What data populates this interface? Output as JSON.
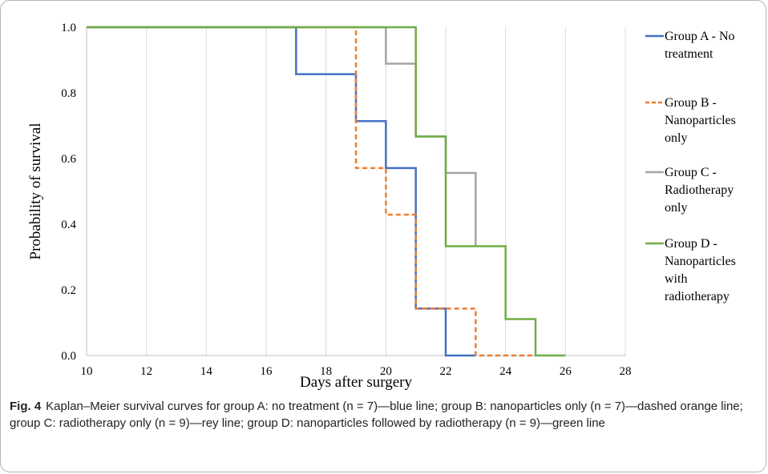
{
  "chart_data": {
    "type": "line",
    "xlabel": "Days after surgery",
    "ylabel": "Probability of survival",
    "xlim": [
      10,
      28
    ],
    "ylim": [
      0.0,
      1.0
    ],
    "xticks": [
      10,
      12,
      14,
      16,
      18,
      20,
      22,
      24,
      26,
      28
    ],
    "yticks": [
      "0.0",
      "0.2",
      "0.4",
      "0.6",
      "0.8",
      "1.0"
    ],
    "grid": "vertical",
    "legend_position": "right",
    "series": [
      {
        "name": "Group A - No treatment",
        "legend_lines": [
          "Group A - No",
          "treatment"
        ],
        "color": "#4472C4",
        "dash": "solid",
        "x": [
          10,
          17,
          17,
          19,
          19,
          20,
          20,
          21,
          21,
          22,
          22,
          23
        ],
        "y": [
          1.0,
          1.0,
          0.857,
          0.857,
          0.714,
          0.714,
          0.571,
          0.571,
          0.143,
          0.143,
          0.0,
          0.0
        ]
      },
      {
        "name": "Group B - Nanoparticles only",
        "legend_lines": [
          "Group B -",
          "Nanoparticles",
          "only"
        ],
        "color": "#ED7D31",
        "dash": "dashed",
        "x": [
          10,
          19,
          19,
          20,
          20,
          21,
          21,
          23,
          23,
          25
        ],
        "y": [
          1.0,
          1.0,
          0.571,
          0.571,
          0.429,
          0.429,
          0.143,
          0.143,
          0.0,
          0.0
        ]
      },
      {
        "name": "Group C - Radiotherapy only",
        "legend_lines": [
          "Group C -",
          "Radiotherapy",
          "only"
        ],
        "color": "#A5A5A5",
        "dash": "solid",
        "x": [
          10,
          20,
          20,
          21,
          21,
          22,
          22,
          23,
          23
        ],
        "y": [
          1.0,
          1.0,
          0.889,
          0.889,
          0.667,
          0.667,
          0.556,
          0.556,
          0.333
        ]
      },
      {
        "name": "Group D - Nanoparticles with radiotherapy",
        "legend_lines": [
          "Group D -",
          "Nanoparticles",
          "with",
          "radiotherapy"
        ],
        "color": "#70AD47",
        "dash": "solid",
        "x": [
          10,
          21,
          21,
          22,
          22,
          24,
          24,
          25,
          25,
          26
        ],
        "y": [
          1.0,
          1.0,
          0.667,
          0.667,
          0.333,
          0.333,
          0.111,
          0.111,
          0.0,
          0.0
        ]
      }
    ]
  },
  "caption": {
    "label": "Fig. 4",
    "text": "Kaplan–Meier survival curves for group A: no treatment (n = 7)—blue line; group B: nanoparticles only (n = 7)—dashed orange line; group C: radiotherapy only (n = 9)—rey line; group D: nanoparticles followed by radiotherapy (n = 9)—green line"
  }
}
